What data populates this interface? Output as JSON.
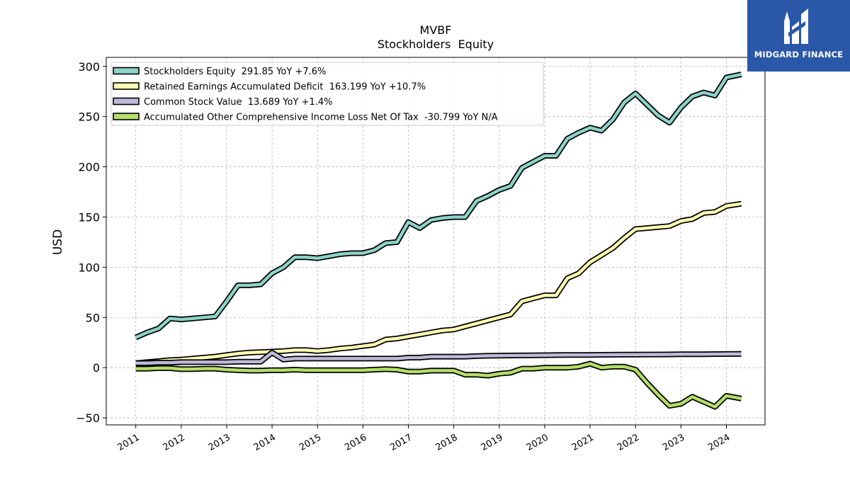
{
  "logo": {
    "text": "MIDGARD FINANCE",
    "bg_color": "#2a57a8"
  },
  "chart_data": {
    "type": "line",
    "title": "MVBF",
    "subtitle": "Stockholders  Equity",
    "xlabel": "",
    "ylabel": "USD",
    "xlim": [
      2010.35,
      2024.85
    ],
    "ylim": [
      -57,
      309
    ],
    "yticks": [
      -50,
      0,
      50,
      100,
      150,
      200,
      250,
      300
    ],
    "ytick_labels": [
      "−50",
      "0",
      "50",
      "100",
      "150",
      "200",
      "250",
      "300"
    ],
    "xticks": [
      2011,
      2012,
      2013,
      2014,
      2015,
      2016,
      2017,
      2018,
      2019,
      2020,
      2021,
      2022,
      2023,
      2024
    ],
    "xtick_labels": [
      "2011",
      "2012",
      "2013",
      "2014",
      "2015",
      "2016",
      "2017",
      "2018",
      "2019",
      "2020",
      "2021",
      "2022",
      "2023",
      "2024"
    ],
    "grid": true,
    "legend_position": "top-left",
    "x": [
      2011.0,
      2011.25,
      2011.5,
      2011.75,
      2012.0,
      2012.25,
      2012.5,
      2012.75,
      2013.0,
      2013.25,
      2013.5,
      2013.75,
      2014.0,
      2014.25,
      2014.5,
      2014.75,
      2015.0,
      2015.25,
      2015.5,
      2015.75,
      2016.0,
      2016.25,
      2016.5,
      2016.75,
      2017.0,
      2017.25,
      2017.5,
      2017.75,
      2018.0,
      2018.25,
      2018.5,
      2018.75,
      2019.0,
      2019.25,
      2019.5,
      2019.75,
      2020.0,
      2020.25,
      2020.5,
      2020.75,
      2021.0,
      2021.25,
      2021.5,
      2021.75,
      2022.0,
      2022.25,
      2022.5,
      2022.75,
      2023.0,
      2023.25,
      2023.5,
      2023.75,
      2024.0,
      2024.33
    ],
    "series": [
      {
        "name": "Stockholders Equity  291.85 YoY +7.6%",
        "color": "#8dd3c7",
        "values": [
          30,
          35,
          39,
          49,
          48,
          49,
          50,
          51,
          66,
          82,
          82,
          83,
          94,
          100,
          110,
          110,
          109,
          111,
          113,
          114,
          114,
          117,
          124,
          125,
          145,
          139,
          147,
          149,
          150,
          150,
          166,
          171,
          177,
          181,
          199,
          205,
          211,
          211,
          228,
          234,
          239,
          236,
          247,
          264,
          273,
          262,
          251,
          244,
          259,
          270,
          274,
          271,
          289,
          292
        ]
      },
      {
        "name": "Retained Earnings Accumulated Deficit  163.199 YoY +10.7%",
        "color": "#ffffb3",
        "values": [
          4.5,
          5.5,
          6.5,
          7.5,
          8,
          9,
          10,
          11,
          12.5,
          14,
          15,
          15.5,
          16,
          16.5,
          17.5,
          17.5,
          16.5,
          17.5,
          19,
          20,
          21.5,
          23,
          28,
          29,
          31,
          33,
          35,
          37,
          38,
          41,
          44,
          47,
          50,
          53,
          66,
          69,
          72,
          72,
          89,
          94,
          105,
          112,
          119,
          129,
          138,
          139,
          140,
          141,
          146,
          148,
          154,
          155,
          161,
          163.2
        ]
      },
      {
        "name": "Common Stock Value  13.689 YoY +1.4%",
        "color": "#bebada",
        "values": [
          4.5,
          4.5,
          5,
          5,
          5.5,
          5.5,
          5.5,
          5.5,
          5.5,
          6,
          6,
          6,
          15,
          8,
          9,
          9,
          9,
          9,
          9,
          9,
          9,
          9,
          9,
          9,
          10,
          10,
          11,
          11,
          11,
          11,
          11.5,
          11.8,
          12,
          12.1,
          12.2,
          12.3,
          12.4,
          12.5,
          12.6,
          12.7,
          12.7,
          12.8,
          12.9,
          13,
          13,
          13.1,
          13.1,
          13.2,
          13.3,
          13.4,
          13.4,
          13.5,
          13.6,
          13.689
        ]
      },
      {
        "name": "Accumulated Other Comprehensive Income Loss Net Of Tax  -30.799 YoY N/A",
        "color": "#b3de69",
        "values": [
          -1,
          -1,
          -0.5,
          -0.5,
          -1.5,
          -1.5,
          -1,
          -1,
          -2,
          -2.5,
          -3,
          -3,
          -2.5,
          -2.5,
          -2,
          -2.5,
          -2.5,
          -2.5,
          -2.5,
          -2.5,
          -2.5,
          -2,
          -1.5,
          -2,
          -4,
          -4,
          -3,
          -3,
          -3,
          -7,
          -7,
          -8,
          -6,
          -5,
          -1,
          -1,
          0,
          0,
          0,
          1,
          4,
          0,
          1,
          1,
          -2,
          -15,
          -27,
          -38,
          -36,
          -29,
          -34,
          -39,
          -28,
          -30.799
        ]
      }
    ]
  }
}
